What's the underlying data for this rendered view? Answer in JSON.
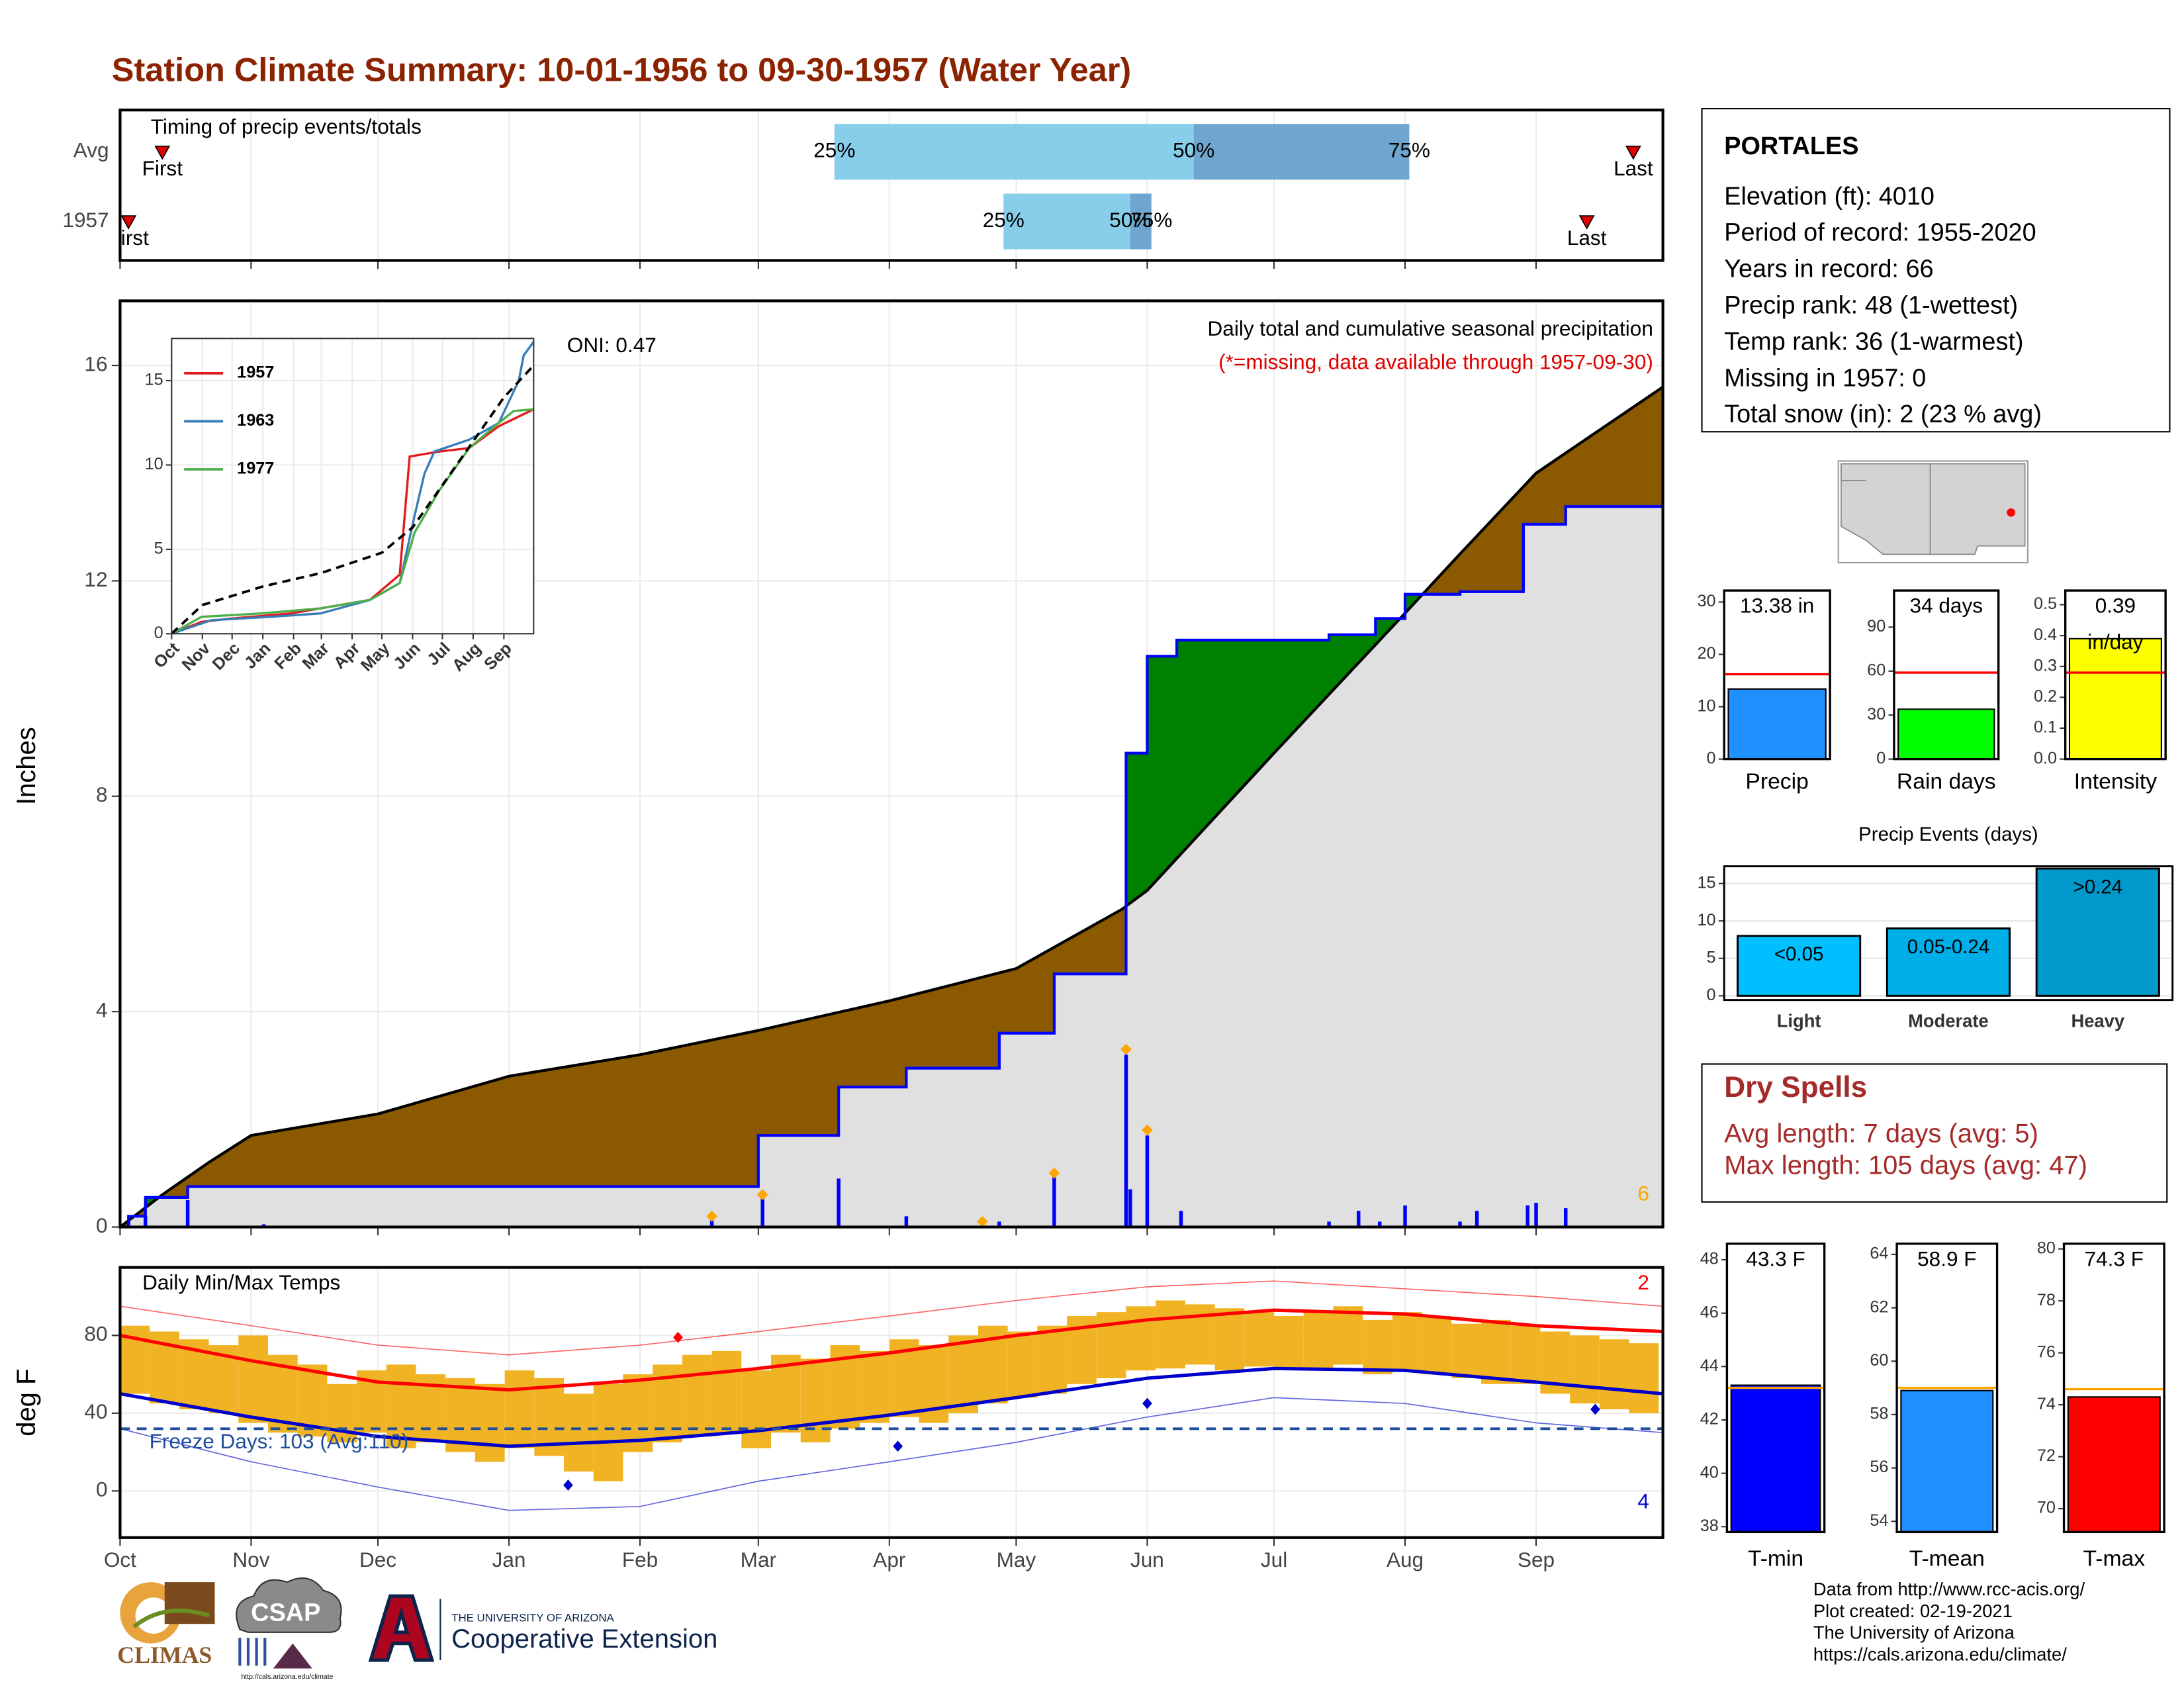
{
  "title": "Station Climate Summary: 10-01-1956 to 09-30-1957 (Water Year)",
  "chart_data": [
    {
      "type": "timing",
      "title": "Timing of precip events/totals",
      "categories": [
        "Avg",
        "1957"
      ],
      "first": [
        10,
        2
      ],
      "p25": [
        169,
        209
      ],
      "p50": [
        254,
        239
      ],
      "p75": [
        305,
        244
      ],
      "last": [
        358,
        347
      ],
      "first_label": "First",
      "last_label": "Last",
      "quantile_labels": [
        "25%",
        "50%",
        "75%"
      ],
      "colors": [
        "#87ceeb",
        "#6fa6cf"
      ],
      "marker_color": "#e00000",
      "xlim": [
        0,
        365
      ],
      "xticks": [
        0,
        31,
        61,
        92,
        123,
        151,
        182,
        212,
        243,
        273,
        304,
        335
      ]
    },
    {
      "type": "cumulative_precip",
      "title": "Daily total and cumulative seasonal precipitation",
      "subtitle": "(*=missing, data available through 1957-09-30)",
      "annotation": "ONI: 0.47",
      "corner_label": "6",
      "ylabel": "Inches",
      "xlim": [
        0,
        365
      ],
      "xticks": [
        0,
        31,
        61,
        92,
        123,
        151,
        182,
        212,
        243,
        273,
        304,
        335
      ],
      "ylim": [
        0,
        17.2
      ],
      "yticks": [
        0,
        4,
        8,
        12,
        16
      ],
      "grid": true,
      "above_color": "#008000",
      "below_color": "#8b5a00",
      "base_color": "#e0e0e0",
      "average_cumulative": {
        "color": "#000000",
        "x": [
          0,
          10,
          21,
          31,
          61,
          92,
          123,
          151,
          182,
          212,
          237,
          243,
          273,
          304,
          317,
          335,
          365
        ],
        "values": [
          0,
          0.6,
          1.2,
          1.7,
          2.1,
          2.8,
          3.2,
          3.65,
          4.2,
          4.8,
          5.9,
          6.25,
          8.8,
          11.4,
          12.5,
          14.0,
          15.6
        ]
      },
      "observed_cumulative": {
        "color": "#0000ff",
        "x": [
          0,
          2,
          2,
          6,
          6,
          16,
          16,
          151,
          151,
          170,
          170,
          186,
          186,
          208,
          208,
          221,
          221,
          238,
          238,
          243,
          243,
          250,
          250,
          286,
          286,
          297,
          297,
          304,
          304,
          317,
          317,
          332,
          332,
          342,
          342,
          365
        ],
        "values": [
          0,
          0,
          0.2,
          0.2,
          0.55,
          0.55,
          0.75,
          0.75,
          1.7,
          1.7,
          2.6,
          2.6,
          2.95,
          2.95,
          3.6,
          3.6,
          4.7,
          4.7,
          8.8,
          8.8,
          10.6,
          10.6,
          10.9,
          10.9,
          11.0,
          11.0,
          11.3,
          11.3,
          11.75,
          11.75,
          11.8,
          11.8,
          13.05,
          13.05,
          13.38,
          13.38
        ]
      },
      "daily": {
        "color": "#0000ff",
        "x": [
          2,
          6,
          16,
          34,
          140,
          152,
          170,
          186,
          204,
          208,
          221,
          238,
          239,
          243,
          251,
          286,
          293,
          298,
          304,
          317,
          321,
          333,
          335,
          342
        ],
        "values": [
          0.1,
          0.2,
          0.5,
          0.05,
          0.12,
          0.6,
          0.9,
          0.2,
          0.05,
          0.1,
          0.95,
          3.2,
          0.7,
          1.7,
          0.3,
          0.1,
          0.3,
          0.1,
          0.4,
          0.1,
          0.3,
          0.4,
          0.45,
          0.35
        ]
      },
      "flags": {
        "color": "#ffa500",
        "x": [
          140,
          152,
          204,
          221,
          238,
          243
        ],
        "values": [
          0.2,
          0.6,
          0.1,
          1.0,
          3.3,
          1.8
        ]
      }
    },
    {
      "type": "line",
      "xlim": [
        0,
        365
      ],
      "xticks": [
        {
          "value": 0,
          "label": "Oct"
        },
        {
          "value": 31,
          "label": "Nov"
        },
        {
          "value": 61,
          "label": "Dec"
        },
        {
          "value": 92,
          "label": "Jan"
        },
        {
          "value": 123,
          "label": "Feb"
        },
        {
          "value": 151,
          "label": "Mar"
        },
        {
          "value": 182,
          "label": "Apr"
        },
        {
          "value": 212,
          "label": "May"
        },
        {
          "value": 243,
          "label": "Jun"
        },
        {
          "value": 273,
          "label": "Jul"
        },
        {
          "value": 304,
          "label": "Aug"
        },
        {
          "value": 335,
          "label": "Sep"
        }
      ],
      "ylim": [
        0,
        17.5
      ],
      "yticks": [
        0,
        5,
        10,
        15
      ],
      "series": [
        {
          "name": "1957",
          "color": "#e41a1c",
          "x": [
            0,
            30,
            60,
            120,
            160,
            200,
            230,
            240,
            270,
            300,
            330,
            365
          ],
          "values": [
            0,
            0.7,
            0.9,
            1.2,
            1.6,
            2.0,
            3.5,
            10.5,
            10.8,
            11.0,
            12.3,
            13.3
          ]
        },
        {
          "name": "1963",
          "color": "#377eb8",
          "x": [
            0,
            40,
            100,
            150,
            200,
            230,
            245,
            255,
            265,
            300,
            330,
            350,
            355,
            365
          ],
          "values": [
            0,
            0.8,
            1.0,
            1.2,
            2.0,
            3.0,
            7.0,
            9.5,
            10.8,
            11.5,
            12.5,
            15.0,
            16.5,
            17.3
          ]
        },
        {
          "name": "1977",
          "color": "#4daf4a",
          "x": [
            0,
            30,
            90,
            150,
            200,
            230,
            245,
            270,
            300,
            330,
            345,
            365
          ],
          "values": [
            0,
            1.0,
            1.2,
            1.5,
            2.0,
            3.0,
            6.0,
            8.5,
            11.0,
            12.5,
            13.2,
            13.3
          ]
        }
      ],
      "average": {
        "color": "#000000",
        "x": [
          0,
          31,
          92,
          151,
          212,
          243,
          273,
          304,
          335,
          365
        ],
        "values": [
          0,
          1.7,
          2.8,
          3.6,
          4.8,
          6.3,
          8.8,
          11.4,
          14.0,
          15.9
        ]
      }
    },
    {
      "type": "temperature",
      "title": "Daily Min/Max Temps",
      "ylabel": "deg F",
      "xlim": [
        0,
        365
      ],
      "xticks": [
        {
          "value": 0,
          "label": "Oct"
        },
        {
          "value": 31,
          "label": "Nov"
        },
        {
          "value": 61,
          "label": "Dec"
        },
        {
          "value": 92,
          "label": "Jan"
        },
        {
          "value": 123,
          "label": "Feb"
        },
        {
          "value": 151,
          "label": "Mar"
        },
        {
          "value": 182,
          "label": "Apr"
        },
        {
          "value": 212,
          "label": "May"
        },
        {
          "value": 243,
          "label": "Jun"
        },
        {
          "value": 273,
          "label": "Jul"
        },
        {
          "value": 304,
          "label": "Aug"
        },
        {
          "value": 335,
          "label": "Sep"
        }
      ],
      "ylim": [
        -24,
        115
      ],
      "yticks": [
        0,
        40,
        80
      ],
      "grid": true,
      "bar_color": "#f0b323",
      "bins": [
        0,
        7,
        14,
        21,
        28,
        35,
        42,
        49,
        56,
        63,
        70,
        77,
        84,
        91,
        98,
        105,
        112,
        119,
        126,
        133,
        140,
        147,
        154,
        161,
        168,
        175,
        182,
        189,
        196,
        203,
        210,
        217,
        224,
        231,
        238,
        245,
        252,
        259,
        266,
        273,
        280,
        287,
        294,
        301,
        308,
        315,
        322,
        329,
        336,
        343,
        350,
        357,
        364
      ],
      "obs_max": [
        85,
        82,
        78,
        75,
        80,
        70,
        65,
        55,
        62,
        65,
        60,
        58,
        55,
        62,
        58,
        50,
        55,
        60,
        65,
        70,
        72,
        62,
        70,
        68,
        75,
        72,
        78,
        75,
        80,
        85,
        82,
        85,
        90,
        92,
        95,
        98,
        96,
        94,
        92,
        90,
        92,
        95,
        88,
        92,
        90,
        86,
        88,
        85,
        82,
        80,
        78,
        76
      ],
      "obs_min": [
        50,
        45,
        42,
        40,
        35,
        30,
        28,
        25,
        30,
        22,
        25,
        20,
        15,
        22,
        18,
        10,
        5,
        20,
        25,
        28,
        30,
        22,
        30,
        25,
        32,
        35,
        38,
        35,
        40,
        45,
        48,
        50,
        55,
        58,
        62,
        63,
        65,
        62,
        64,
        63,
        62,
        65,
        60,
        62,
        60,
        58,
        55,
        55,
        50,
        45,
        42,
        40
      ],
      "normals_x": [
        0,
        31,
        61,
        92,
        123,
        151,
        182,
        212,
        243,
        273,
        304,
        335,
        365
      ],
      "avg_max": [
        80,
        67,
        56,
        52,
        57,
        63,
        71,
        80,
        88,
        93,
        91,
        85,
        82
      ],
      "avg_min": [
        50,
        38,
        28,
        23,
        26,
        31,
        39,
        48,
        58,
        63,
        62,
        56,
        50
      ],
      "record_max": [
        95,
        85,
        75,
        70,
        75,
        82,
        90,
        98,
        105,
        108,
        104,
        100,
        95
      ],
      "record_min": [
        32,
        15,
        2,
        -10,
        -8,
        5,
        15,
        25,
        38,
        48,
        45,
        35,
        30
      ],
      "max_color": "#ff0000",
      "min_color": "#0000cd",
      "freeze_color": "#1f4e9c",
      "freeze_threshold": 32,
      "freeze_label": "Freeze Days: 103 (Avg:110)",
      "record_high_count": 2,
      "record_low_count": 4,
      "record_high_points": {
        "x": [
          132
        ],
        "values": [
          79
        ]
      },
      "record_low_points": {
        "x": [
          106,
          184,
          243,
          349
        ],
        "values": [
          3,
          23,
          45,
          42
        ]
      }
    },
    {
      "type": "bar",
      "title": "Precip",
      "value": 13.38,
      "value_label": "13.38 in",
      "avg": 16.2,
      "color": "#1e90ff",
      "ylim": [
        0,
        32.2
      ],
      "yticks": [
        0,
        10,
        20,
        30
      ]
    },
    {
      "type": "bar",
      "title": "Rain days",
      "value": 34,
      "value_label": "34 days",
      "avg": 59,
      "color": "#00ff00",
      "ylim": [
        0,
        115
      ],
      "yticks": [
        0,
        30,
        60,
        90
      ]
    },
    {
      "type": "bar",
      "title": "Intensity",
      "value": 0.39,
      "value_label": "0.39",
      "unit_label": "in/day",
      "avg": 0.28,
      "color": "#ffff00",
      "ylim": [
        0,
        0.546
      ],
      "yticks": [
        {
          "value": 0,
          "label": "0.0"
        },
        {
          "value": 0.1,
          "label": "0.1"
        },
        {
          "value": 0.2,
          "label": "0.2"
        },
        {
          "value": 0.3,
          "label": "0.3"
        },
        {
          "value": 0.4,
          "label": "0.4"
        },
        {
          "value": 0.5,
          "label": "0.5"
        }
      ]
    },
    {
      "type": "bar",
      "title": "Precip Events (days)",
      "categories": [
        "Light",
        "Moderate",
        "Heavy"
      ],
      "values": [
        8,
        9,
        17
      ],
      "value_labels": [
        "<0.05",
        "0.05-0.24",
        ">0.24"
      ],
      "colors": [
        "#00bfff",
        "#00aee8",
        "#0099cc"
      ],
      "ylim": [
        0,
        17.3
      ],
      "yticks": [
        0,
        5,
        10,
        15
      ],
      "grid": true
    },
    {
      "type": "bar",
      "title": "T-min",
      "value": 43.3,
      "value_label": "43.3 F",
      "avg": 43.2,
      "color": "#0000ff",
      "ylim": [
        37.8,
        48.6
      ],
      "yticks": [
        38,
        40,
        42,
        44,
        46,
        48
      ]
    },
    {
      "type": "bar",
      "title": "T-mean",
      "value": 58.9,
      "value_label": "58.9 F",
      "avg": 59.0,
      "color": "#1e90ff",
      "ylim": [
        53.6,
        64.4
      ],
      "yticks": [
        54,
        56,
        58,
        60,
        62,
        64
      ]
    },
    {
      "type": "bar",
      "title": "T-max",
      "value": 74.3,
      "value_label": "74.3 F",
      "avg": 74.6,
      "color": "#ff0000",
      "ylim": [
        69.1,
        80.2
      ],
      "yticks": [
        70,
        72,
        74,
        76,
        78,
        80
      ]
    }
  ],
  "station": {
    "name": "PORTALES",
    "lines": [
      "Elevation (ft): 4010",
      "Period of record: 1955-2020",
      "Years in record: 66",
      "Precip rank: 48 (1-wettest)",
      "Temp rank: 36 (1-warmest)",
      "Missing in 1957: 0",
      "Total snow (in): 2 (23 % avg)"
    ]
  },
  "dry_spells": {
    "title": "Dry Spells",
    "lines": [
      "Avg length: 7 days (avg: 5)",
      "Max length: 105 days (avg: 47)"
    ]
  },
  "footer": {
    "credits": [
      "Data from http://www.rcc-acis.org/",
      "Plot created: 02-19-2021",
      "The University of Arizona",
      "https://cals.arizona.edu/climate/"
    ],
    "climas": "CLIMAS",
    "csap": "CSAP",
    "csap_url": "http://cals.arizona.edu/climate",
    "ua": "THE UNIVERSITY OF ARIZONA",
    "extension": "Cooperative Extension"
  }
}
